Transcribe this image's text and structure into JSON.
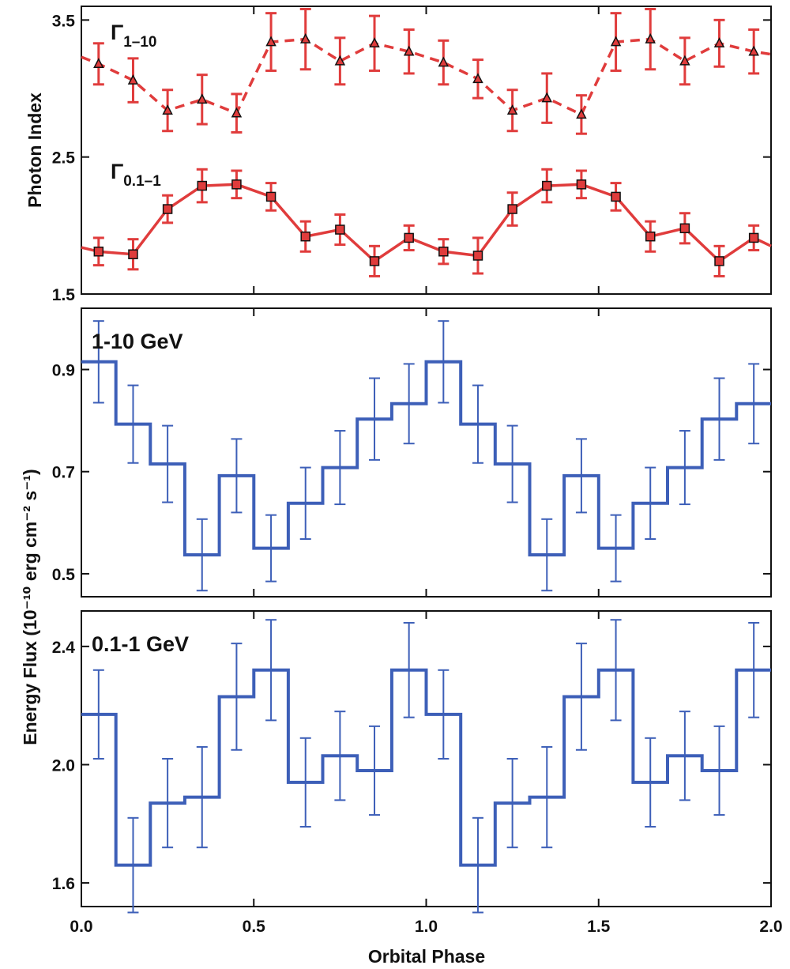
{
  "figure": {
    "shared_xlabel": "Orbital Phase",
    "shared_ylabel_flux": "Energy Flux (10⁻¹⁰ erg cm⁻² s⁻¹)"
  },
  "colors": {
    "photon_index": "#e03c3c",
    "flux": "#3d5fb8",
    "axes": "#111111"
  },
  "chart_data": [
    {
      "type": "line",
      "panel": "photon-index",
      "ylabel": "Photon Index",
      "xlim": [
        0.0,
        2.0
      ],
      "ylim": [
        1.5,
        3.6
      ],
      "x_ticks": [
        0.0,
        0.5,
        1.0,
        1.5,
        2.0
      ],
      "y_ticks": [
        "1.5",
        "2.5",
        "3.5"
      ],
      "y_tick_values": [
        1.5,
        2.5,
        3.5
      ],
      "x": [
        0.05,
        0.15,
        0.25,
        0.35,
        0.45,
        0.55,
        0.65,
        0.75,
        0.85,
        0.95,
        1.05,
        1.15,
        1.25,
        1.35,
        1.45,
        1.55,
        1.65,
        1.75,
        1.85,
        1.95
      ],
      "series": [
        {
          "name": "Γ1–10",
          "label_main": "Γ",
          "label_sub": "1–10",
          "style": "dashed",
          "marker": "triangle",
          "values": [
            3.18,
            3.06,
            2.84,
            2.92,
            2.82,
            3.34,
            3.36,
            3.2,
            3.33,
            3.27,
            3.19,
            3.07,
            2.84,
            2.93,
            2.81,
            3.34,
            3.36,
            3.2,
            3.33,
            3.27
          ],
          "error": [
            0.15,
            0.16,
            0.15,
            0.18,
            0.14,
            0.21,
            0.22,
            0.17,
            0.2,
            0.16,
            0.16,
            0.14,
            0.15,
            0.18,
            0.14,
            0.21,
            0.22,
            0.17,
            0.17,
            0.16
          ],
          "edge_left": 3.23,
          "edge_right": 3.25
        },
        {
          "name": "Γ0.1–1",
          "label_main": "Γ",
          "label_sub": "0.1–1",
          "style": "solid",
          "marker": "square",
          "values": [
            1.81,
            1.79,
            2.12,
            2.29,
            2.3,
            2.21,
            1.92,
            1.97,
            1.74,
            1.91,
            1.81,
            1.78,
            2.12,
            2.29,
            2.3,
            2.21,
            1.92,
            1.98,
            1.74,
            1.91
          ],
          "error": [
            0.1,
            0.11,
            0.1,
            0.12,
            0.1,
            0.1,
            0.11,
            0.11,
            0.11,
            0.09,
            0.09,
            0.13,
            0.12,
            0.12,
            0.1,
            0.1,
            0.11,
            0.11,
            0.11,
            0.09
          ],
          "edge_left": 1.84,
          "edge_right": 1.85
        }
      ]
    },
    {
      "type": "line",
      "panel": "flux-1-10",
      "annotation": "1-10 GeV",
      "xlim": [
        0.0,
        2.0
      ],
      "ylim": [
        0.455,
        1.02
      ],
      "x_ticks": [
        0.0,
        0.5,
        1.0,
        1.5,
        2.0
      ],
      "y_ticks": [
        "0.5",
        "0.7",
        "0.9"
      ],
      "y_tick_values": [
        0.5,
        0.7,
        0.9
      ],
      "bin_edges": [
        0.0,
        0.1,
        0.2,
        0.3,
        0.4,
        0.5,
        0.6,
        0.7,
        0.8,
        0.9,
        1.0,
        1.1,
        1.2,
        1.3,
        1.4,
        1.5,
        1.6,
        1.7,
        1.8,
        1.9,
        2.0
      ],
      "values": [
        0.915,
        0.793,
        0.715,
        0.537,
        0.692,
        0.55,
        0.638,
        0.708,
        0.803,
        0.833,
        0.915,
        0.793,
        0.715,
        0.537,
        0.692,
        0.55,
        0.638,
        0.708,
        0.803,
        0.833
      ],
      "error": [
        0.08,
        0.076,
        0.075,
        0.07,
        0.072,
        0.065,
        0.07,
        0.072,
        0.08,
        0.078,
        0.08,
        0.076,
        0.075,
        0.07,
        0.072,
        0.065,
        0.07,
        0.072,
        0.08,
        0.078
      ]
    },
    {
      "type": "line",
      "panel": "flux-0.1-1",
      "annotation": "0.1-1 GeV",
      "xlim": [
        0.0,
        2.0
      ],
      "ylim": [
        1.52,
        2.52
      ],
      "x_ticks": [
        0.0,
        0.5,
        1.0,
        1.5,
        2.0
      ],
      "x_tick_labels": [
        "0.0",
        "0.5",
        "1.0",
        "1.5",
        "2.0"
      ],
      "y_ticks": [
        "1.6",
        "2.0",
        "2.4"
      ],
      "y_tick_values": [
        1.6,
        2.0,
        2.4
      ],
      "bin_edges": [
        0.0,
        0.1,
        0.2,
        0.3,
        0.4,
        0.5,
        0.6,
        0.7,
        0.8,
        0.9,
        1.0,
        1.1,
        1.2,
        1.3,
        1.4,
        1.5,
        1.6,
        1.7,
        1.8,
        1.9,
        2.0
      ],
      "values": [
        2.17,
        1.66,
        1.87,
        1.89,
        2.23,
        2.32,
        1.94,
        2.03,
        1.98,
        2.32,
        2.17,
        1.66,
        1.87,
        1.89,
        2.23,
        2.32,
        1.94,
        2.03,
        1.98,
        2.32
      ],
      "error": [
        0.15,
        0.16,
        0.15,
        0.17,
        0.18,
        0.17,
        0.15,
        0.15,
        0.15,
        0.16,
        0.15,
        0.16,
        0.15,
        0.17,
        0.18,
        0.17,
        0.15,
        0.15,
        0.15,
        0.16
      ]
    }
  ]
}
